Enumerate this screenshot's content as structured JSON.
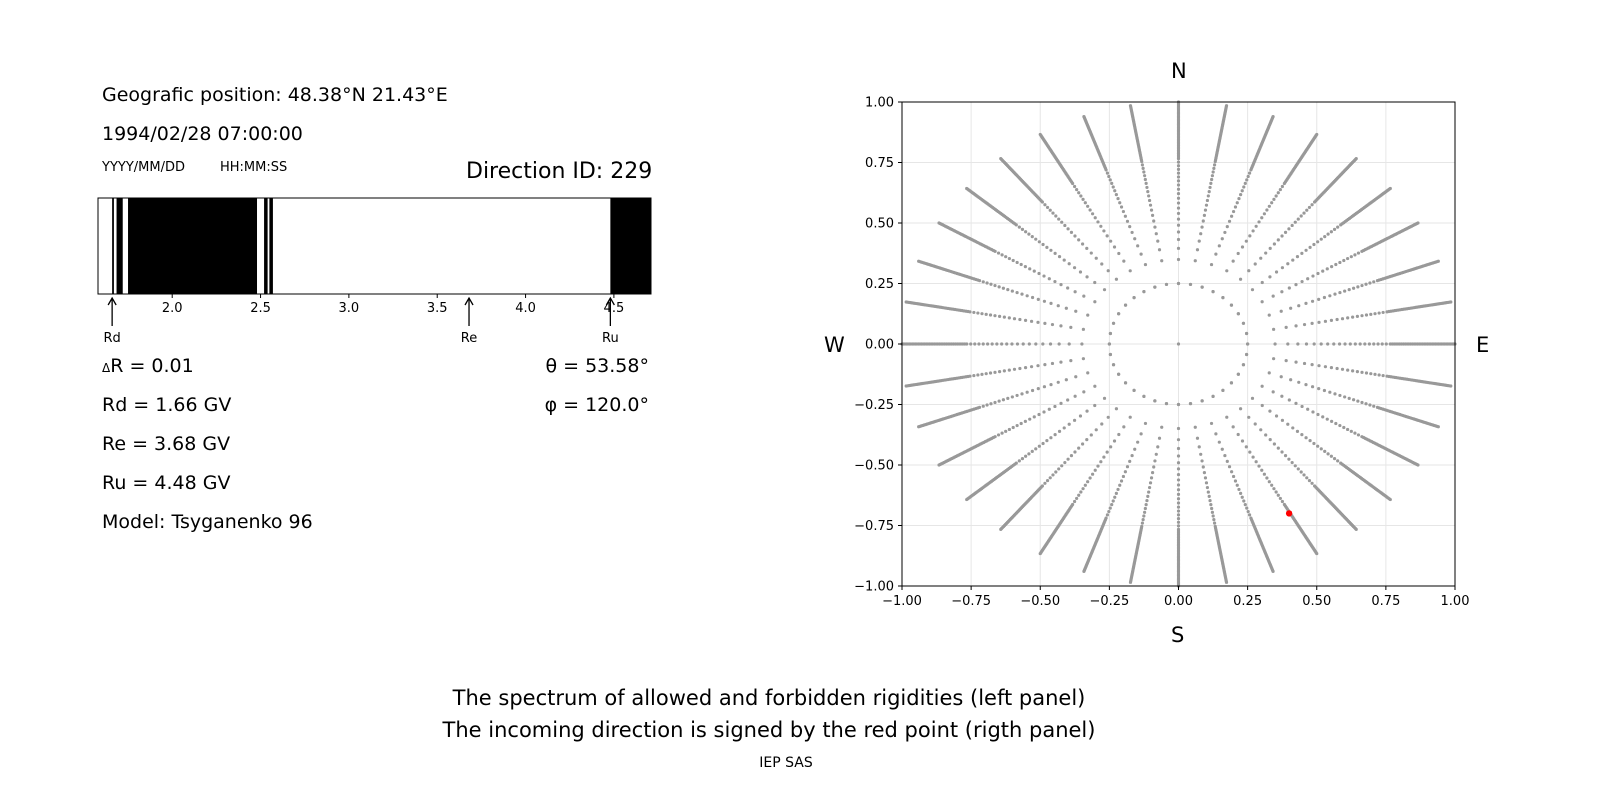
{
  "info": {
    "geo_position": "Geografic position: 48.38°N 21.43°E",
    "datetime": "1994/02/28 07:00:00",
    "date_format": "YYYY/MM/DD",
    "time_format": "HH:MM:SS",
    "direction_id": "Direction ID: 229",
    "delta_r": "R = 0.01",
    "delta_symbol": "Δ",
    "rd": "Rd = 1.66 GV",
    "re": "Re = 3.68 GV",
    "ru": "Ru = 4.48 GV",
    "model": "Model: Tsyganenko 96",
    "theta": "θ = 53.58°",
    "phi": "φ = 120.0°"
  },
  "compass": {
    "north": "N",
    "south": "S",
    "west": "W",
    "east": "E"
  },
  "caption": {
    "line1": "The spectrum of allowed and forbidden rigidities (left panel)",
    "line2": "The incoming direction is signed by the red point (rigth panel)",
    "credit": "IEP SAS"
  },
  "chart_data": [
    {
      "type": "bar",
      "description_key": "rigidity spectrum",
      "xlim": [
        1.58,
        4.71
      ],
      "ticks": [
        2.0,
        2.5,
        3.0,
        3.5,
        4.0,
        4.5
      ],
      "tick_labels": [
        "2.0",
        "2.5",
        "3.0",
        "3.5",
        "4.0",
        "4.5"
      ],
      "forbidden_intervals": [
        [
          1.66,
          1.67
        ],
        [
          1.685,
          1.72
        ],
        [
          1.75,
          2.48
        ],
        [
          2.52,
          2.54
        ],
        [
          2.55,
          2.57
        ],
        [
          4.48,
          4.71
        ]
      ],
      "markers": [
        {
          "label": "Rd",
          "value": 1.66
        },
        {
          "label": "Re",
          "value": 3.68
        },
        {
          "label": "Ru",
          "value": 4.48
        }
      ],
      "colors": {
        "forbidden": "#000000",
        "allowed": "#ffffff"
      }
    },
    {
      "type": "scatter",
      "xlim": [
        -1.0,
        1.0
      ],
      "ylim": [
        -1.0,
        1.0
      ],
      "x_ticks": [
        -1.0,
        -0.75,
        -0.5,
        -0.25,
        0.0,
        0.25,
        0.5,
        0.75,
        1.0
      ],
      "y_ticks": [
        -1.0,
        -0.75,
        -0.5,
        -0.25,
        0.0,
        0.25,
        0.5,
        0.75,
        1.0
      ],
      "x_tick_labels": [
        "−1.00",
        "−0.75",
        "−0.50",
        "−0.25",
        "0.00",
        "0.25",
        "0.50",
        "0.75",
        "1.00"
      ],
      "y_tick_labels": [
        "−1.00",
        "−0.75",
        "−0.50",
        "−0.25",
        "0.00",
        "0.25",
        "0.50",
        "0.75",
        "1.00"
      ],
      "grid": true,
      "pattern": {
        "center": [
          0.0,
          0.0
        ],
        "rays": 36,
        "ray_step_deg": 10,
        "ray_r_min": 0.25,
        "ray_r_max": 1.0,
        "inner_ring_radius": 0.25,
        "inner_ring_points": 36
      },
      "highlight": {
        "x": 0.4,
        "y": -0.7
      },
      "colors": {
        "points": "#999999",
        "highlight": "#ff0000",
        "grid": "#e6e6e6"
      }
    }
  ]
}
